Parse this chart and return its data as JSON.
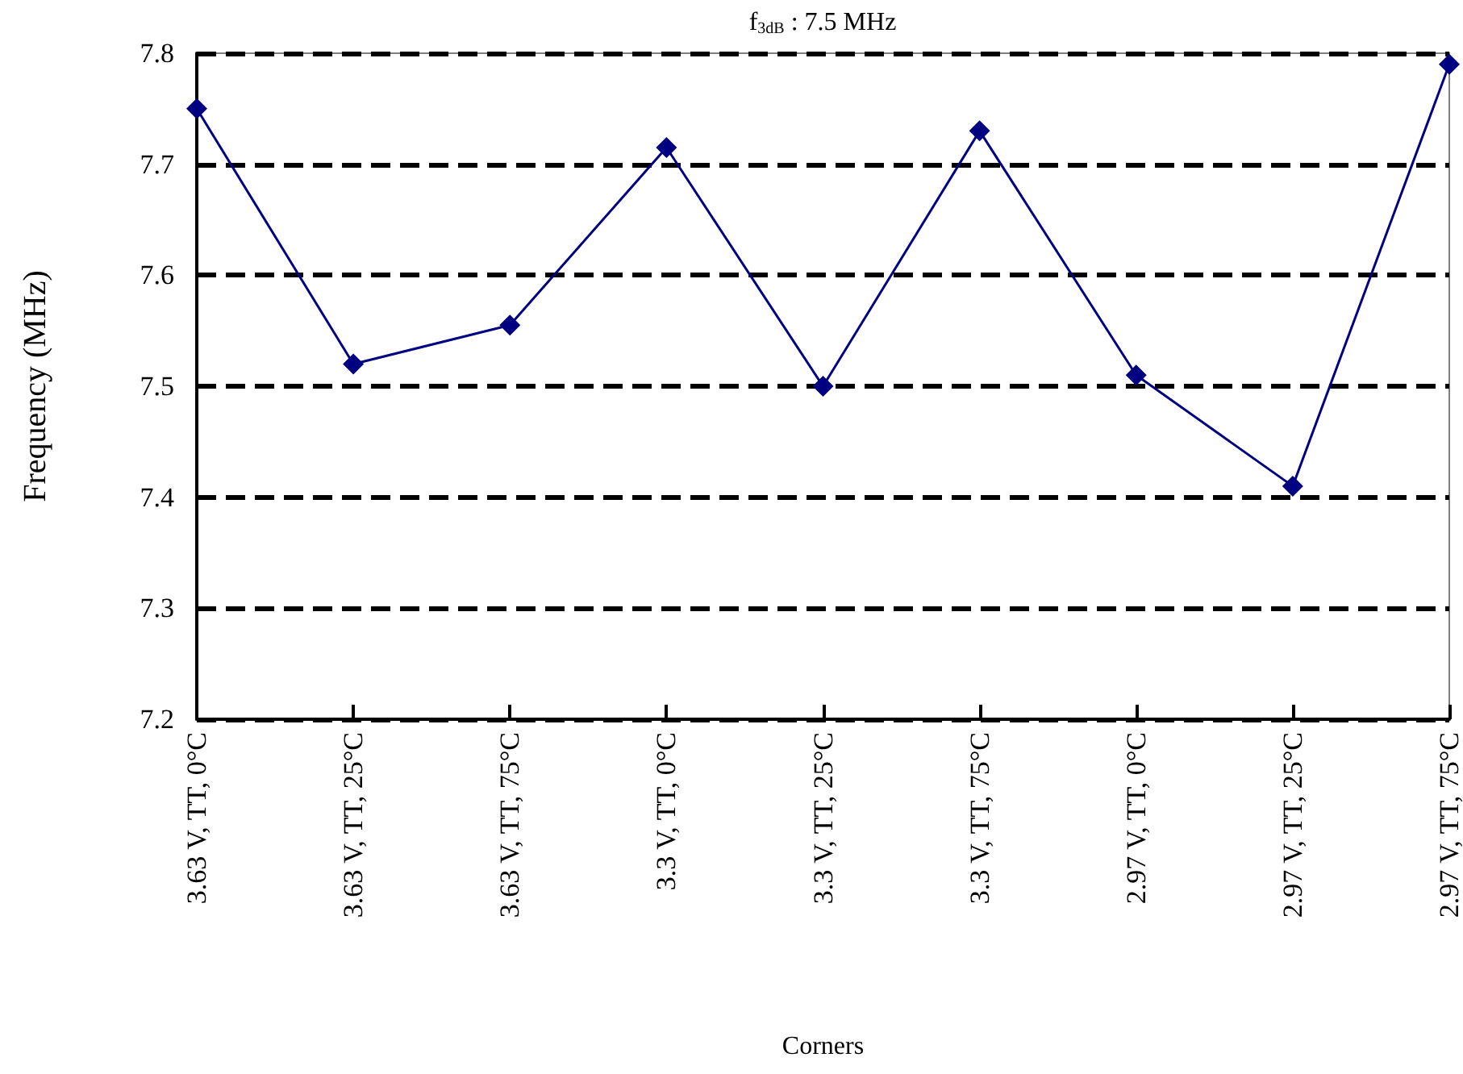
{
  "chart_data": {
    "type": "line",
    "title": "f$_{3dB}$ : 7.5 MHz",
    "xlabel": "Corners",
    "ylabel": "Frequency (MHz)",
    "categories": [
      "3.63 V, TT, 0°C",
      "3.63 V, TT, 25°C",
      "3.63 V, TT, 75°C",
      "3.3 V, TT, 0°C",
      "3.3 V, TT, 25°C",
      "3.3 V, TT, 75°C",
      "2.97 V, TT, 0°C",
      "2.97 V, TT, 25°C",
      "2.97 V, TT, 75°C"
    ],
    "series": [
      {
        "color": "#000080",
        "values": [
          7.75,
          7.52,
          7.555,
          7.715,
          7.5,
          7.73,
          7.51,
          7.41,
          7.79
        ]
      }
    ],
    "ylim": [
      7.2,
      7.8
    ],
    "yticks": [
      7.2,
      7.3,
      7.4,
      7.5,
      7.6,
      7.7,
      7.8
    ],
    "grid": "y",
    "marker": "diamond",
    "line_style": "solid"
  }
}
